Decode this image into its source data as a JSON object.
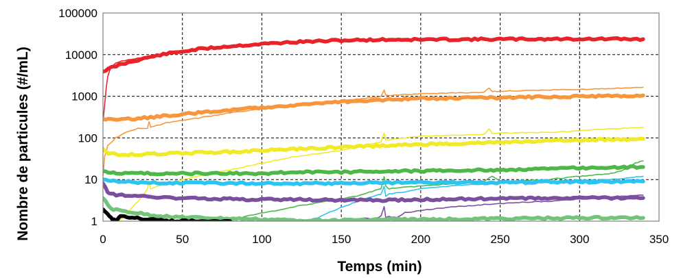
{
  "chart_data": {
    "type": "line",
    "title": "",
    "xlabel": "Temps (min)",
    "ylabel": "Nombre de particules (#/mL)",
    "xlim": [
      0,
      350
    ],
    "ylim": [
      1,
      100000
    ],
    "y_scale": "log",
    "grid": true,
    "legend": "none",
    "x_ticks": [
      "0",
      "50",
      "100",
      "150",
      "200",
      "250",
      "300",
      "350"
    ],
    "y_ticks": [
      "1",
      "10",
      "100",
      "1000",
      "10000",
      "100000"
    ],
    "series": [
      {
        "color": "#e8232a",
        "style": "thick",
        "x": [
          0,
          5,
          10,
          20,
          30,
          40,
          60,
          80,
          100,
          120,
          150,
          180,
          200,
          250,
          300,
          340
        ],
        "y": [
          4000,
          4800,
          5600,
          7200,
          8800,
          10500,
          13500,
          16000,
          18000,
          20000,
          22000,
          23000,
          23000,
          23500,
          23800,
          23500
        ]
      },
      {
        "color": "#e8232a",
        "style": "thin",
        "x": [
          0,
          1,
          2,
          3,
          5,
          8,
          12,
          20,
          30,
          40,
          60,
          100,
          150,
          200,
          250,
          300,
          340
        ],
        "y": [
          250,
          600,
          1500,
          3000,
          5000,
          6200,
          7000,
          8000,
          9200,
          10500,
          13500,
          18000,
          22000,
          23000,
          23500,
          24000,
          24000
        ]
      },
      {
        "color": "#f7963c",
        "style": "thick",
        "x": [
          0,
          5,
          10,
          20,
          40,
          60,
          80,
          100,
          120,
          150,
          180,
          200,
          250,
          300,
          340
        ],
        "y": [
          290,
          270,
          270,
          290,
          340,
          400,
          470,
          540,
          620,
          730,
          840,
          880,
          930,
          1000,
          1050
        ]
      },
      {
        "color": "#f7963c",
        "style": "thin",
        "x": [
          0,
          1,
          3,
          8,
          15,
          22,
          28,
          29,
          30,
          40,
          60,
          80,
          100,
          120,
          150,
          175,
          177,
          178,
          180,
          200,
          240,
          243,
          245,
          250,
          290,
          300,
          340
        ],
        "y": [
          12,
          35,
          65,
          100,
          140,
          170,
          170,
          250,
          180,
          230,
          300,
          400,
          500,
          620,
          780,
          980,
          1450,
          1050,
          1050,
          1150,
          1250,
          1600,
          1300,
          1320,
          1450,
          1450,
          1650
        ]
      },
      {
        "color": "#f0ea29",
        "style": "thick",
        "x": [
          0,
          2,
          5,
          10,
          20,
          40,
          60,
          80,
          100,
          120,
          150,
          180,
          200,
          250,
          300,
          340
        ],
        "y": [
          55,
          45,
          42,
          40,
          40,
          42,
          44,
          46,
          50,
          54,
          60,
          66,
          70,
          78,
          88,
          95
        ]
      },
      {
        "color": "#f0ea29",
        "style": "thin",
        "x": [
          10,
          15,
          20,
          25,
          28,
          29,
          30,
          40,
          60,
          80,
          100,
          120,
          150,
          175,
          177,
          178,
          180,
          200,
          240,
          243,
          245,
          250,
          290,
          300,
          340
        ],
        "y": [
          1,
          1.5,
          2.5,
          4,
          6,
          9,
          6,
          8,
          12,
          17,
          25,
          35,
          50,
          80,
          130,
          90,
          90,
          110,
          120,
          165,
          130,
          130,
          140,
          150,
          180
        ]
      },
      {
        "color": "#4db848",
        "style": "thick",
        "x": [
          0,
          5,
          10,
          20,
          40,
          60,
          80,
          100,
          120,
          150,
          180,
          200,
          250,
          300,
          340
        ],
        "y": [
          16,
          15,
          14,
          14,
          14,
          14,
          14,
          14,
          15,
          15,
          16,
          16,
          17,
          19,
          20
        ]
      },
      {
        "color": "#4db848",
        "style": "thin",
        "x": [
          80,
          90,
          100,
          110,
          120,
          140,
          160,
          175,
          177,
          178,
          180,
          200,
          220,
          240,
          245,
          250,
          280,
          300,
          320,
          330,
          335,
          340
        ],
        "y": [
          1,
          1.3,
          1.6,
          1.8,
          2.2,
          3,
          4,
          6,
          12,
          7,
          6,
          7,
          8,
          9,
          12,
          9,
          10,
          12,
          14,
          18,
          25,
          28
        ]
      },
      {
        "color": "#2ec4f1",
        "style": "thick",
        "x": [
          0,
          5,
          10,
          20,
          40,
          60,
          80,
          100,
          120,
          150,
          180,
          200,
          250,
          300,
          340
        ],
        "y": [
          10,
          9.5,
          9,
          8.5,
          8.3,
          8.2,
          8.1,
          8,
          8,
          8.2,
          8.4,
          8.5,
          8.5,
          8.8,
          9
        ]
      },
      {
        "color": "#2ec4f1",
        "style": "thin",
        "x": [
          125,
          135,
          145,
          155,
          165,
          175,
          177,
          178,
          180,
          190,
          200,
          210,
          230,
          245,
          260,
          280,
          300,
          320,
          340
        ],
        "y": [
          1,
          1.2,
          1.8,
          2.5,
          3.5,
          4.5,
          7,
          4,
          4.5,
          5,
          6,
          6.5,
          7.5,
          8,
          8.5,
          9,
          9.5,
          10,
          12
        ]
      },
      {
        "color": "#7b4fa0",
        "style": "thick",
        "x": [
          0,
          3,
          5,
          10,
          20,
          40,
          60,
          80,
          100,
          120,
          150,
          180,
          200,
          250,
          300,
          340
        ],
        "y": [
          8,
          5,
          4.5,
          4.2,
          4,
          3.7,
          3.5,
          3.4,
          3.3,
          3.3,
          3.2,
          3.2,
          3.3,
          3.5,
          3.6,
          3.6
        ]
      },
      {
        "color": "#7b4fa0",
        "style": "thin",
        "x": [
          160,
          165,
          170,
          175,
          177,
          178,
          180,
          185,
          190,
          200,
          210,
          220,
          240,
          260,
          280,
          300,
          320,
          330,
          340
        ],
        "y": [
          1,
          1.2,
          1.1,
          1.3,
          2.2,
          1.2,
          1.3,
          1.2,
          1.6,
          1.8,
          2,
          2.2,
          2.5,
          2.8,
          3,
          3.4,
          3.8,
          4,
          4.2
        ]
      },
      {
        "color": "#72c47a",
        "style": "thick",
        "x": [
          0,
          3,
          5,
          10,
          20,
          30,
          40,
          60,
          80,
          100,
          120,
          150,
          180,
          200,
          250,
          300,
          340
        ],
        "y": [
          3.5,
          2.5,
          2,
          1.8,
          1.6,
          1.4,
          1.3,
          1.2,
          1.15,
          1.1,
          1.05,
          1.05,
          1.1,
          1.1,
          1.15,
          1.2,
          1.2
        ]
      },
      {
        "color": "#000000",
        "style": "thick",
        "x": [
          0,
          2,
          4,
          6,
          8,
          10,
          12,
          15,
          20,
          25,
          30,
          35,
          40,
          45,
          50,
          60,
          70,
          80
        ],
        "y": [
          2,
          1.7,
          1.3,
          1.1,
          1,
          1.2,
          1.4,
          1.3,
          1.2,
          1.1,
          1.1,
          1.05,
          1,
          1,
          1,
          1,
          1,
          1
        ]
      }
    ]
  }
}
